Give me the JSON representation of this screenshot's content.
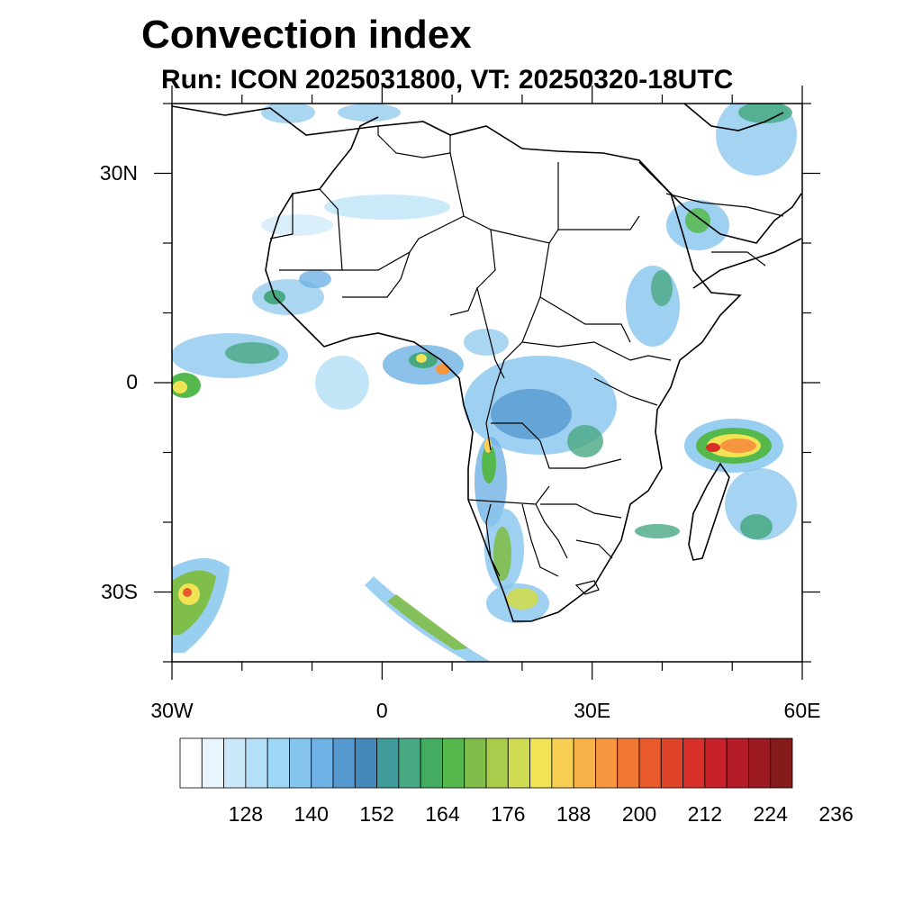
{
  "title": "Convection index",
  "subtitle": "Run: ICON 2025031800,  VT: 20250320-18UTC",
  "map": {
    "extent": {
      "lon": [
        -30,
        60
      ],
      "lat": [
        -40,
        40
      ]
    },
    "lat_labels": [
      {
        "text": "30N",
        "lat": 30
      },
      {
        "text": "0",
        "lat": 0
      },
      {
        "text": "30S",
        "lat": -30
      }
    ],
    "lon_labels": [
      {
        "text": "30W",
        "lon": -30
      },
      {
        "text": "0",
        "lon": 0
      },
      {
        "text": "30E",
        "lon": 30
      },
      {
        "text": "60E",
        "lon": 60
      }
    ]
  },
  "colorbar": {
    "colors": [
      "#ffffff",
      "#e8f5fd",
      "#cbe8f8",
      "#b3e0f6",
      "#9dd7f5",
      "#86c5ed",
      "#6fb1e4",
      "#5699d0",
      "#4588ba",
      "#3f9a9a",
      "#48a882",
      "#43ac60",
      "#55b84c",
      "#7fbe4b",
      "#a8cc4c",
      "#cfdb52",
      "#f0e454",
      "#f8cf53",
      "#f7b34a",
      "#f6963f",
      "#f07734",
      "#e8592b",
      "#e04428",
      "#d83029",
      "#c72129",
      "#b31b27",
      "#9e1a23",
      "#861b1c"
    ],
    "labels": [
      "128",
      "140",
      "152",
      "164",
      "176",
      "188",
      "200",
      "212",
      "224",
      "236"
    ]
  }
}
